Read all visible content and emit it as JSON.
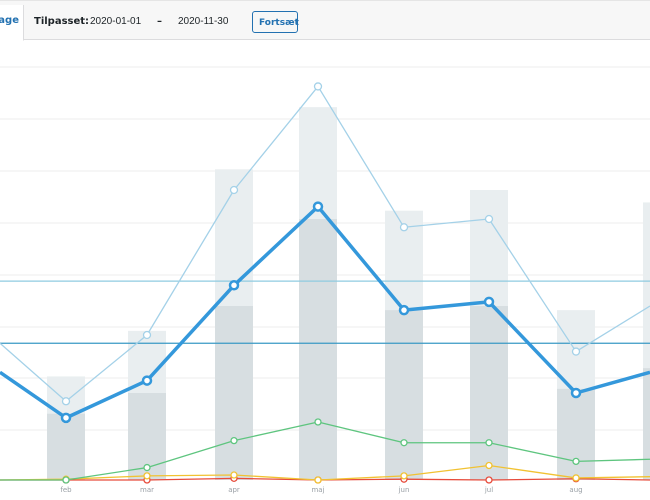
{
  "toolbar": {
    "active_tab_label": "dage",
    "custom_label": "Tilpasset:",
    "date_from": "2020-01-01",
    "date_separator": "–",
    "date_to": "2020-11-30",
    "continue_label": "Fortsæt"
  },
  "chart_data": {
    "type": "bar",
    "categories": [
      "feb",
      "mar",
      "apr",
      "maj",
      "jun",
      "jul",
      "aug"
    ],
    "grid": true,
    "colors": {
      "bar_light": "#e9eef0",
      "bar_dark": "#d7dee1",
      "line_main": "#3498db",
      "line_light": "#a4d1e8",
      "line_green": "#5ec57f",
      "line_yellow": "#f1c232",
      "line_red": "#e74c3c",
      "ref_line_1": "#8fcbe0",
      "ref_line_2": "#3a9ac4"
    },
    "series": [
      {
        "kind": "bar_total",
        "values": [
          2.5,
          3.6,
          7.5,
          9.0,
          6.5,
          7.0,
          4.1
        ]
      },
      {
        "kind": "bar_partial",
        "values": [
          1.6,
          2.1,
          4.2,
          6.3,
          4.1,
          4.2,
          2.2
        ]
      },
      {
        "kind": "line_light",
        "values": [
          1.9,
          3.5,
          7.0,
          9.5,
          6.1,
          6.3,
          3.1
        ]
      },
      {
        "kind": "line_main",
        "values": [
          1.5,
          2.4,
          4.7,
          6.6,
          4.1,
          4.3,
          2.1
        ]
      },
      {
        "kind": "line_green",
        "values": [
          0.0,
          0.3,
          0.95,
          1.4,
          0.9,
          0.9,
          0.45
        ]
      },
      {
        "kind": "line_yellow",
        "values": [
          0.02,
          0.1,
          0.12,
          0.0,
          0.1,
          0.35,
          0.05
        ]
      },
      {
        "kind": "line_red",
        "values": [
          0.0,
          0.0,
          0.04,
          0.0,
          0.02,
          0.0,
          0.03
        ]
      }
    ],
    "reference_lines": [
      4.8,
      3.3
    ],
    "ylim": [
      0,
      10.5
    ]
  }
}
